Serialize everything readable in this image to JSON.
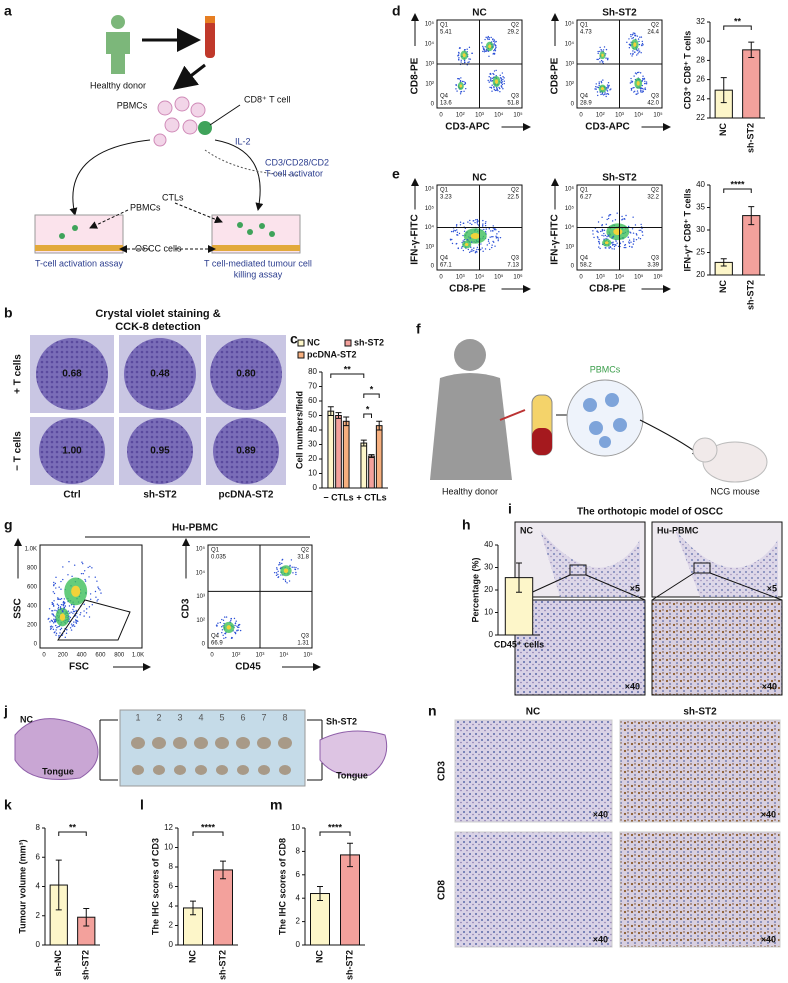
{
  "panel_labels": [
    "a",
    "b",
    "c",
    "d",
    "e",
    "f",
    "g",
    "h",
    "i",
    "j",
    "k",
    "l",
    "m",
    "n"
  ],
  "panels": {
    "a": {
      "donor": "Healthy donor",
      "pbmcs": "PBMCs",
      "cd8": "CD8⁺ T cell",
      "il2": "IL-2",
      "activator": [
        "CD3/CD28/CD2",
        "T-cell activator"
      ],
      "well_pbmcs": "PBMCs",
      "ctls": "CTLs",
      "oscc": "OSCC cells",
      "assay_left": "T-cell activation assay",
      "assay_right": [
        "T cell-mediated tumour cell",
        "killing assay"
      ]
    },
    "b": {
      "title": [
        "Crystal violet staining &",
        "CCK-8 detection"
      ],
      "rows": [
        "+ T cells",
        "− T cells"
      ],
      "columns": [
        "Ctrl",
        "sh-ST2",
        "pcDNA-ST2"
      ],
      "values": [
        [
          "0.68",
          "0.48",
          "0.80"
        ],
        [
          "1.00",
          "0.95",
          "0.89"
        ]
      ]
    },
    "c": {
      "chart": {
        "type": "bar",
        "ylabel": "Cell numbers/field",
        "categories": [
          "− CTLs",
          "+ CTLs"
        ],
        "series": [
          {
            "name": "NC",
            "color": "#fdf6c9",
            "values": [
              53,
              31
            ],
            "errors": [
              3,
              2
            ]
          },
          {
            "name": "sh-ST2",
            "color": "#f3a19c",
            "values": [
              50,
              22
            ],
            "errors": [
              2,
              1
            ]
          },
          {
            "name": "pcDNA-ST2",
            "color": "#f7b07f",
            "values": [
              46,
              43
            ],
            "errors": [
              3,
              3
            ]
          }
        ],
        "ylim": [
          0,
          80
        ],
        "yticks": [
          0,
          10,
          20,
          30,
          40,
          50,
          60,
          70,
          80
        ],
        "significance": [
          "**",
          "*",
          "*"
        ]
      }
    },
    "d": {
      "plots": [
        {
          "title": "NC",
          "xlabel": "CD3-APC",
          "ylabel": "CD8-PE",
          "x_tick_labels": [
            "0",
            "10²",
            "10³",
            "10⁴",
            "10⁵"
          ],
          "y_tick_labels": [
            "0",
            "10²",
            "10³",
            "10⁴",
            "10⁵"
          ],
          "quadrants": [
            {
              "name": "Q1",
              "value": "5.41"
            },
            {
              "name": "Q2",
              "value": "29.2"
            },
            {
              "name": "Q3",
              "value": "51.8"
            },
            {
              "name": "Q4",
              "value": "13.6"
            }
          ]
        },
        {
          "title": "Sh-ST2",
          "xlabel": "CD3-APC",
          "ylabel": "CD8-PE",
          "x_tick_labels": [
            "0",
            "10²",
            "10³",
            "10⁴",
            "10⁵"
          ],
          "y_tick_labels": [
            "0",
            "10²",
            "10³",
            "10⁴",
            "10⁵"
          ],
          "quadrants": [
            {
              "name": "Q1",
              "value": "4.73"
            },
            {
              "name": "Q2",
              "value": "24.4"
            },
            {
              "name": "Q3",
              "value": "42.0"
            },
            {
              "name": "Q4",
              "value": "28.9"
            }
          ]
        }
      ],
      "chart": {
        "type": "bar",
        "ylabel": "CD3⁺ CD8⁺ T cells",
        "categories": [
          "NC",
          "sh-ST2"
        ],
        "values": [
          24.9,
          29.1
        ],
        "errors": [
          1.3,
          0.8
        ],
        "colors": [
          "#fdf6c9",
          "#f3a19c"
        ],
        "ylim": [
          22,
          32
        ],
        "yticks": [
          22,
          24,
          26,
          28,
          30,
          32
        ],
        "significance": [
          "**"
        ]
      }
    },
    "e": {
      "plots": [
        {
          "title": "NC",
          "xlabel": "CD8-PE",
          "ylabel": "IFN-γ-FITC",
          "x_tick_labels": [
            "0",
            "10³",
            "10⁴",
            "10⁵",
            "10⁶"
          ],
          "y_tick_labels": [
            "0",
            "10³",
            "10⁴",
            "10⁵",
            "10⁶"
          ],
          "quadrants": [
            {
              "name": "Q1",
              "value": "3.23"
            },
            {
              "name": "Q2",
              "value": "22.5"
            },
            {
              "name": "Q3",
              "value": "7.13"
            },
            {
              "name": "Q4",
              "value": "67.1"
            }
          ]
        },
        {
          "title": "Sh-ST2",
          "xlabel": "CD8-PE",
          "ylabel": "IFN-γ-FITC",
          "x_tick_labels": [
            "0",
            "10³",
            "10⁴",
            "10⁵",
            "10⁶"
          ],
          "y_tick_labels": [
            "0",
            "10³",
            "10⁴",
            "10⁵",
            "10⁶"
          ],
          "quadrants": [
            {
              "name": "Q1",
              "value": "6.27"
            },
            {
              "name": "Q2",
              "value": "32.2"
            },
            {
              "name": "Q3",
              "value": "3.39"
            },
            {
              "name": "Q4",
              "value": "58.2"
            }
          ]
        }
      ],
      "chart": {
        "type": "bar",
        "ylabel": "IFN-γ⁺ CD8⁺ T cells",
        "categories": [
          "NC",
          "sh-ST2"
        ],
        "values": [
          22.8,
          33.2
        ],
        "errors": [
          0.8,
          2
        ],
        "colors": [
          "#fdf6c9",
          "#f3a19c"
        ],
        "ylim": [
          20,
          40
        ],
        "yticks": [
          20,
          25,
          30,
          35,
          40
        ],
        "significance": [
          "****"
        ]
      }
    },
    "f": {
      "pbmcs": "PBMCs",
      "donor": "Healthy donor",
      "mouse": "NCG mouse"
    },
    "g": {
      "title": "Hu-PBMC",
      "plots": [
        {
          "xlabel": "FSC",
          "ylabel": "SSC",
          "x_tick_labels": [
            "0",
            "200",
            "400",
            "600",
            "800",
            "1.0K"
          ],
          "y_tick_labels": [
            "0",
            "200",
            "400",
            "600",
            "800",
            "1.0K"
          ]
        },
        {
          "xlabel": "CD45",
          "ylabel": "CD3",
          "x_tick_labels": [
            "0",
            "10²",
            "10³",
            "10⁴",
            "10⁵"
          ],
          "y_tick_labels": [
            "0",
            "10²",
            "10³",
            "10⁴",
            "10⁵"
          ],
          "quadrants": [
            {
              "name": "Q1",
              "value": "0.035"
            },
            {
              "name": "Q2",
              "value": "31.8"
            },
            {
              "name": "Q3",
              "value": "1.31"
            },
            {
              "name": "Q4",
              "value": "66.9"
            }
          ]
        }
      ]
    },
    "h": {
      "chart": {
        "type": "bar",
        "ylabel": "Percentage (%)",
        "categories": [
          "CD45⁺ cells"
        ],
        "values": [
          25.5
        ],
        "errors": [
          6.5
        ],
        "colors": [
          "#fdf6c9"
        ],
        "ylim": [
          0,
          40
        ],
        "yticks": [
          0,
          10,
          20,
          30,
          40
        ],
        "significance": []
      }
    },
    "i": {
      "title": "The orthotopic model of OSCC",
      "groups": [
        "NC",
        "Hu-PBMC"
      ],
      "low_mag": "×5",
      "high_mag": "×40"
    },
    "j": {
      "left": "NC",
      "right": "Sh-ST2",
      "tissue": "Tongue",
      "ruler": [
        "1",
        "2",
        "3",
        "4",
        "5",
        "6",
        "7",
        "8"
      ]
    },
    "k": {
      "chart": {
        "type": "bar",
        "ylabel": "Tumour volume (mm³)",
        "categories": [
          "sh-NC",
          "sh-ST2"
        ],
        "values": [
          4.1,
          1.9
        ],
        "errors": [
          1.7,
          0.6
        ],
        "colors": [
          "#fdf6c9",
          "#f3a19c"
        ],
        "ylim": [
          0,
          8
        ],
        "yticks": [
          0,
          2,
          4,
          6,
          8
        ],
        "significance": [
          "**"
        ]
      }
    },
    "l": {
      "chart": {
        "type": "bar",
        "ylabel": "The IHC scores of CD3",
        "categories": [
          "NC",
          "sh-ST2"
        ],
        "values": [
          3.8,
          7.7
        ],
        "errors": [
          0.7,
          0.9
        ],
        "colors": [
          "#fdf6c9",
          "#f3a19c"
        ],
        "ylim": [
          0,
          12
        ],
        "yticks": [
          0,
          2,
          4,
          6,
          8,
          10,
          12
        ],
        "significance": [
          "****"
        ]
      }
    },
    "m": {
      "chart": {
        "type": "bar",
        "ylabel": "The IHC scores of CD8",
        "categories": [
          "NC",
          "sh-ST2"
        ],
        "values": [
          4.4,
          7.7
        ],
        "errors": [
          0.6,
          1
        ],
        "colors": [
          "#fdf6c9",
          "#f3a19c"
        ],
        "ylim": [
          0,
          10
        ],
        "yticks": [
          0,
          2,
          4,
          6,
          8,
          10
        ],
        "significance": [
          "****"
        ]
      }
    },
    "n": {
      "columns": [
        "NC",
        "sh-ST2"
      ],
      "rows": [
        "CD3",
        "CD8"
      ],
      "mag": "×40"
    }
  }
}
